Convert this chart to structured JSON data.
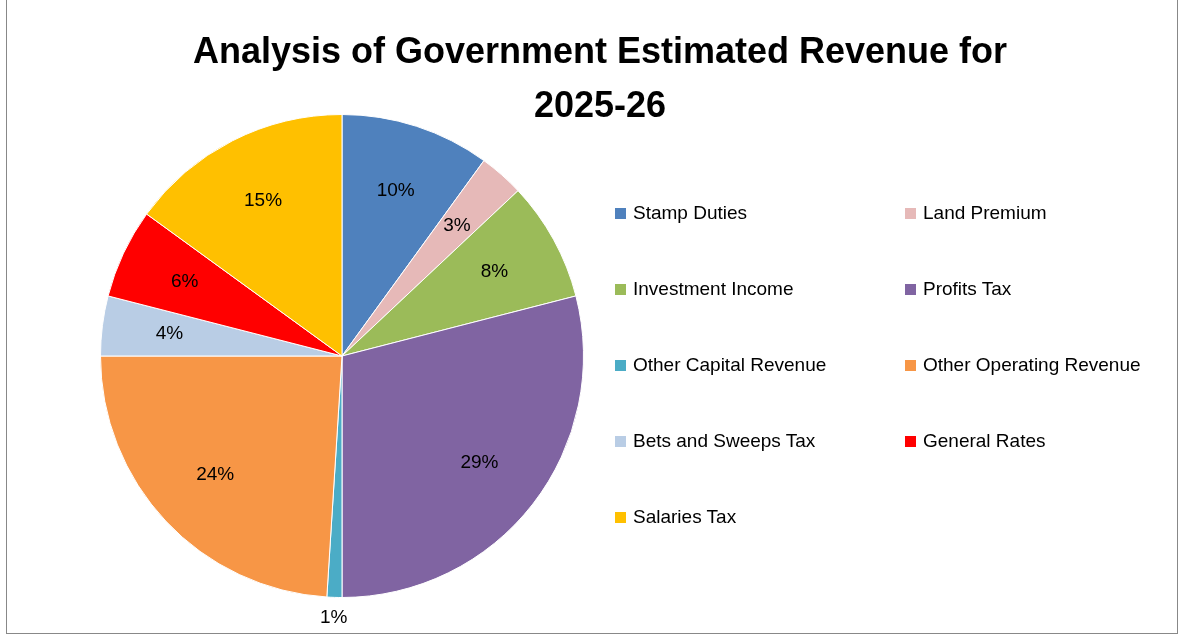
{
  "chart_data": {
    "type": "pie",
    "title": "Analysis of Government Estimated Revenue for 2025-26",
    "categories": [
      "Stamp Duties",
      "Land Premium",
      "Investment Income",
      "Profits Tax",
      "Other Capital Revenue",
      "Other Operating Revenue",
      "Bets and Sweeps Tax",
      "General Rates",
      "Salaries Tax"
    ],
    "values": [
      10,
      3,
      8,
      29,
      1,
      24,
      4,
      6,
      15
    ],
    "value_labels": [
      "10%",
      "3%",
      "8%",
      "29%",
      "1%",
      "24%",
      "4%",
      "6%",
      "15%"
    ],
    "colors": [
      "#4f81bd",
      "#e6b9b8",
      "#9bbb59",
      "#8064a2",
      "#4bacc6",
      "#f79646",
      "#b9cde5",
      "#ff0000",
      "#ffc000"
    ],
    "legend": "right"
  }
}
